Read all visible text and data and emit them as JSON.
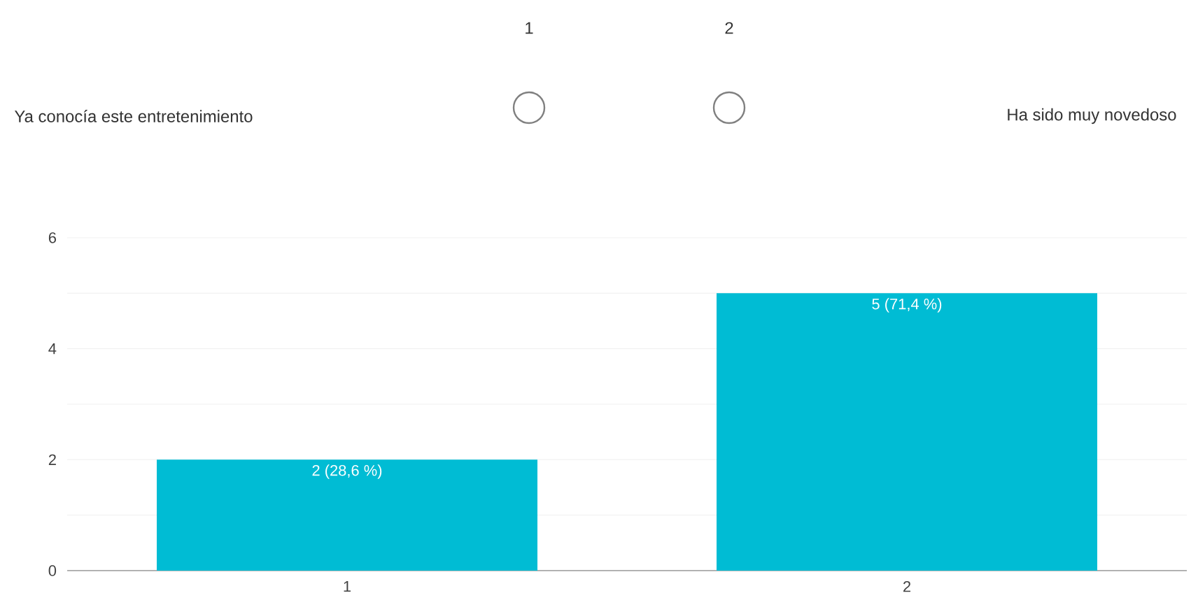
{
  "chart_data": {
    "type": "bar",
    "categories": [
      "1",
      "2"
    ],
    "values": [
      2,
      5
    ],
    "value_labels": [
      "2 (28,6 %)",
      "5 (71,4 %)"
    ],
    "color": "#00bcd4",
    "ylim": [
      0,
      6
    ],
    "yticks": [
      0,
      {
        "value": 1,
        "label": null
      },
      2,
      {
        "value": 3,
        "label": null
      },
      4,
      {
        "value": 5,
        "label": null
      },
      6
    ],
    "grid": "y",
    "annotations": [
      "1",
      "2",
      "Ya conocía este entretenimiento",
      "Ha sido muy novedoso"
    ]
  }
}
